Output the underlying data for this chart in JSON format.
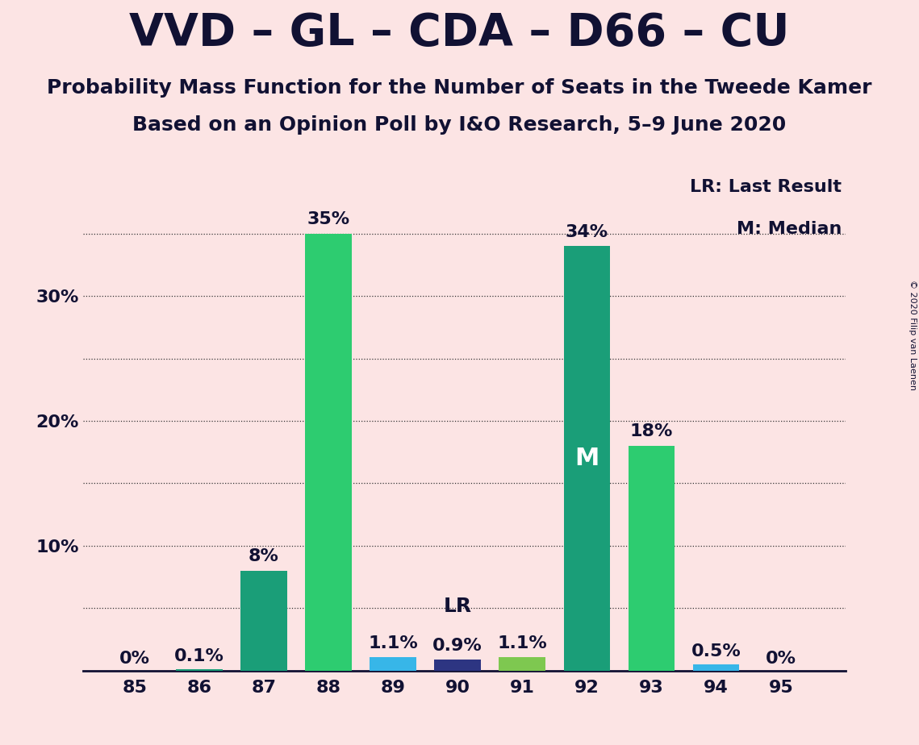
{
  "title": "VVD – GL – CDA – D66 – CU",
  "subtitle1": "Probability Mass Function for the Number of Seats in the Tweede Kamer",
  "subtitle2": "Based on an Opinion Poll by I&O Research, 5–9 June 2020",
  "copyright": "© 2020 Filip van Laenen",
  "background_color": "#fce4e4",
  "categories": [
    85,
    86,
    87,
    88,
    89,
    90,
    91,
    92,
    93,
    94,
    95
  ],
  "values": [
    0.0,
    0.1,
    8.0,
    35.0,
    1.1,
    0.9,
    1.1,
    34.0,
    18.0,
    0.5,
    0.0
  ],
  "bar_colors": [
    "#1a9e78",
    "#1a9e78",
    "#1a9e78",
    "#2dcc70",
    "#37b6e8",
    "#2d3582",
    "#7ec850",
    "#1a9e78",
    "#2dcc70",
    "#37b6e8",
    "#1a9e78"
  ],
  "labels": [
    "0%",
    "0.1%",
    "8%",
    "35%",
    "1.1%",
    "0.9%",
    "1.1%",
    "34%",
    "18%",
    "0.5%",
    "0%"
  ],
  "lr_seat": 90,
  "median_seat": 92,
  "lr_label": "LR",
  "median_label": "M",
  "legend_lr": "LR: Last Result",
  "legend_m": "M: Median",
  "ylim": [
    0,
    40
  ],
  "yticks": [
    10,
    20,
    30
  ],
  "ytick_labels": [
    "10%",
    "20%",
    "30%"
  ],
  "grid_yticks": [
    5,
    10,
    15,
    20,
    25,
    30,
    35
  ],
  "grid_color": "#333333",
  "title_color": "#111133",
  "label_fontsize": 16,
  "title_fontsize": 40,
  "subtitle_fontsize": 18,
  "bar_width": 0.72
}
